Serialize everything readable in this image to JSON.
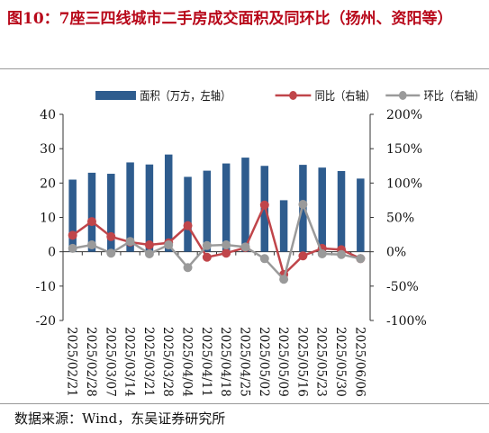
{
  "title": "图10：7座三四线城市二手房成交面积及同环比（扬州、资阳等）",
  "source": "数据来源：Wind，东吴证券研究所",
  "chart_data": {
    "type": "bar",
    "categories": [
      "2025/02/21",
      "2025/02/28",
      "2025/03/07",
      "2025/03/14",
      "2025/03/21",
      "2025/03/28",
      "2025/04/04",
      "2025/04/11",
      "2025/04/18",
      "2025/04/25",
      "2025/05/02",
      "2025/05/09",
      "2025/05/16",
      "2025/05/23",
      "2025/05/30",
      "2025/06/06"
    ],
    "series": [
      {
        "name": "面积（万方，左轴）",
        "type": "bar",
        "axis": "left",
        "color": "#2e5c8e",
        "values": [
          21.0,
          23.0,
          22.7,
          26.0,
          25.4,
          28.3,
          21.8,
          23.6,
          25.7,
          27.4,
          25.0,
          15.0,
          25.3,
          24.5,
          23.5,
          21.3
        ]
      },
      {
        "name": "同比（右轴）",
        "type": "line",
        "axis": "right",
        "color": "#c0454a",
        "values": [
          24,
          44,
          22,
          14,
          10,
          13,
          38,
          -8,
          -2,
          6,
          68,
          -33,
          -6,
          5,
          3,
          -10
        ]
      },
      {
        "name": "环比（右轴）",
        "type": "line",
        "axis": "right",
        "color": "#9a9a9a",
        "values": [
          5,
          10,
          -2,
          15,
          -3,
          10,
          -23,
          9,
          10,
          7,
          -10,
          -40,
          69,
          -3,
          -4,
          -10
        ]
      }
    ],
    "yleft": {
      "min": -20,
      "max": 40,
      "step": 10,
      "ticks": [
        "-20",
        "-10",
        "0",
        "10",
        "20",
        "30",
        "40"
      ]
    },
    "yright": {
      "min": -100,
      "max": 200,
      "step": 50,
      "ticks": [
        "-100%",
        "-50%",
        "0%",
        "50%",
        "100%",
        "150%",
        "200%"
      ]
    },
    "legend_position": "top",
    "grid": false
  }
}
